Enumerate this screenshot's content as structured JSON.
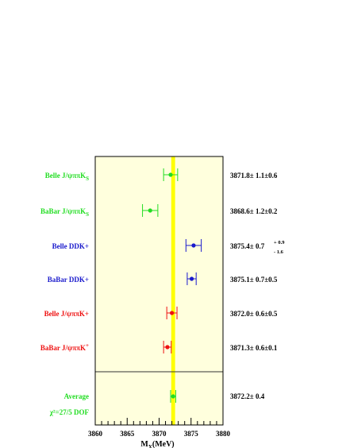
{
  "chart_data": {
    "type": "scatter",
    "title": "",
    "xlabel": "M",
    "xlabel_sub": "X",
    "xlabel_unit": "(MeV)",
    "xlim": [
      3860,
      3880
    ],
    "xticks": [
      "3860",
      "3865",
      "3870",
      "3875",
      "3880"
    ],
    "grid": false,
    "legend": "none",
    "band": {
      "low": 3871.9,
      "high": 3872.5,
      "color": "#ffff00"
    },
    "plot_background": "#ffffdd",
    "points": [
      {
        "label": "Belle  J/ψππK",
        "label_sub": "S",
        "label_sup": "",
        "color": "#22dd22",
        "value": 3871.8,
        "err_lo": 1.1,
        "err_hi": 1.1,
        "result": "3871.8±  1.1±0.6"
      },
      {
        "label": "BaBar  J/ψππK",
        "label_sub": "S",
        "label_sup": "",
        "color": "#22dd22",
        "value": 3868.6,
        "err_lo": 1.2,
        "err_hi": 1.2,
        "result": "3868.6±  1.2±0.2"
      },
      {
        "label": "Belle DDK+",
        "label_sub": "",
        "label_sup": "",
        "color": "#1a1acc",
        "value": 3875.4,
        "err_lo": 1.2,
        "err_hi": 1.2,
        "result": "3875.4±  0.7",
        "result_sup": "+  0.9",
        "result_sub": "-  1.6"
      },
      {
        "label": "BaBar DDK+",
        "label_sub": "",
        "label_sup": "",
        "color": "#1a1acc",
        "value": 3875.1,
        "err_lo": 0.7,
        "err_hi": 0.7,
        "result": "3875.1±  0.7±0.5"
      },
      {
        "label": "Belle  J/ψππK+",
        "label_sub": "",
        "label_sup": "",
        "color": "#ee1111",
        "value": 3872.0,
        "err_lo": 0.8,
        "err_hi": 0.8,
        "result": "3872.0±  0.6±0.5"
      },
      {
        "label": "BaBar J/ψππK",
        "label_sub": "",
        "label_sup": "+",
        "color": "#ee1111",
        "value": 3871.3,
        "err_lo": 0.6,
        "err_hi": 0.6,
        "result": "3871.3±  0.6±0.1"
      }
    ],
    "average": {
      "label": "Average",
      "label2": "χ²=27/5 DOF",
      "color": "#22dd22",
      "value": 3872.2,
      "err_lo": 0.4,
      "err_hi": 0.4,
      "result": "3872.2±  0.4"
    }
  }
}
